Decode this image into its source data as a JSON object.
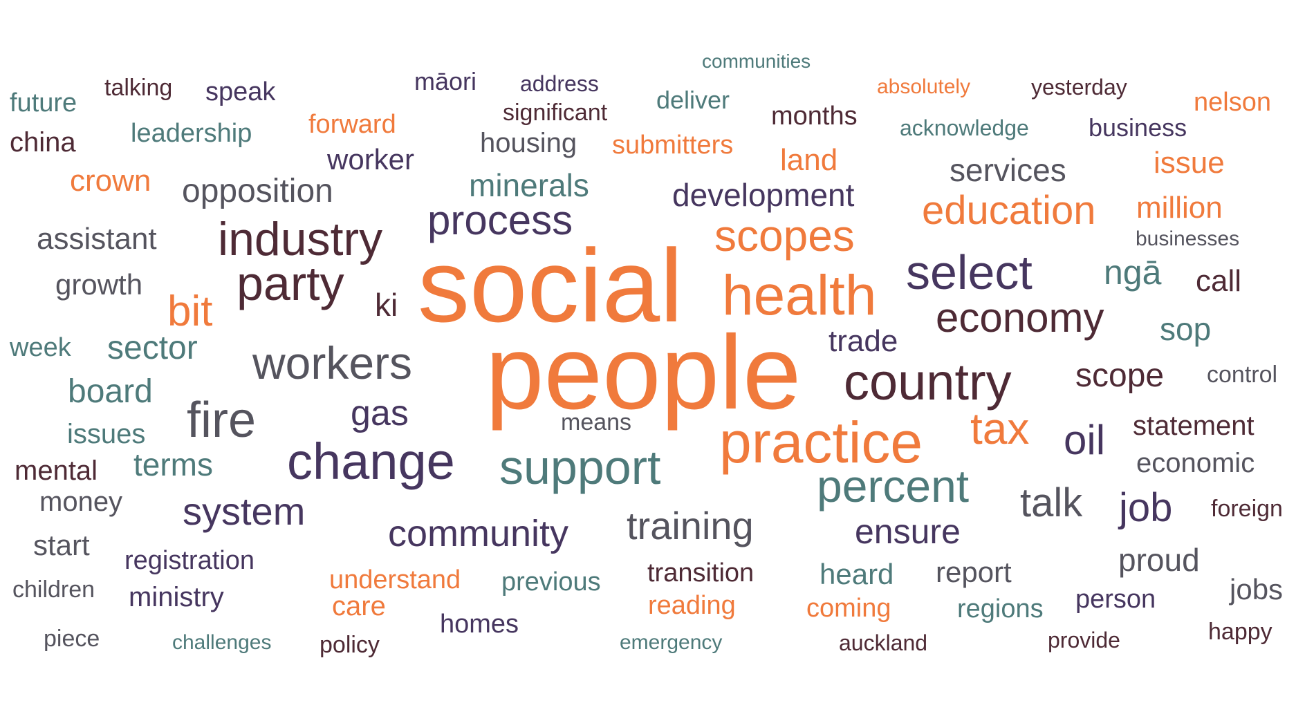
{
  "colors": {
    "orange": "#f07a3c",
    "dark_maroon": "#4e2a35",
    "purple": "#46365f",
    "teal": "#4e7a7a",
    "gray": "#55545e"
  },
  "words": [
    {
      "text": "social",
      "color": "orange"
    },
    {
      "text": "people",
      "color": "orange"
    },
    {
      "text": "health",
      "color": "orange"
    },
    {
      "text": "practice",
      "color": "orange"
    },
    {
      "text": "country",
      "color": "dark_maroon"
    },
    {
      "text": "change",
      "color": "purple"
    },
    {
      "text": "industry",
      "color": "dark_maroon"
    },
    {
      "text": "party",
      "color": "dark_maroon"
    },
    {
      "text": "support",
      "color": "teal"
    },
    {
      "text": "select",
      "color": "purple"
    },
    {
      "text": "workers",
      "color": "gray"
    },
    {
      "text": "scopes",
      "color": "orange"
    },
    {
      "text": "percent",
      "color": "teal"
    },
    {
      "text": "economy",
      "color": "dark_maroon"
    },
    {
      "text": "fire",
      "color": "gray"
    },
    {
      "text": "process",
      "color": "purple"
    },
    {
      "text": "education",
      "color": "orange"
    },
    {
      "text": "tax",
      "color": "orange"
    },
    {
      "text": "oil",
      "color": "purple"
    },
    {
      "text": "system",
      "color": "purple"
    },
    {
      "text": "training",
      "color": "gray"
    },
    {
      "text": "community",
      "color": "purple"
    },
    {
      "text": "talk",
      "color": "gray"
    },
    {
      "text": "job",
      "color": "purple"
    },
    {
      "text": "bit",
      "color": "orange"
    },
    {
      "text": "development",
      "color": "purple"
    },
    {
      "text": "gas",
      "color": "purple"
    },
    {
      "text": "minerals",
      "color": "teal"
    },
    {
      "text": "opposition",
      "color": "gray"
    },
    {
      "text": "sector",
      "color": "teal"
    },
    {
      "text": "board",
      "color": "teal"
    },
    {
      "text": "scope",
      "color": "dark_maroon"
    },
    {
      "text": "ensure",
      "color": "purple"
    },
    {
      "text": "services",
      "color": "gray"
    },
    {
      "text": "crown",
      "color": "orange"
    },
    {
      "text": "land",
      "color": "orange"
    },
    {
      "text": "issue",
      "color": "orange"
    },
    {
      "text": "million",
      "color": "orange"
    },
    {
      "text": "ngā",
      "color": "teal"
    },
    {
      "text": "sop",
      "color": "teal"
    },
    {
      "text": "terms",
      "color": "teal"
    },
    {
      "text": "proud",
      "color": "gray"
    },
    {
      "text": "trade",
      "color": "purple"
    },
    {
      "text": "assistant",
      "color": "gray"
    },
    {
      "text": "call",
      "color": "dark_maroon"
    },
    {
      "text": "ki",
      "color": "dark_maroon"
    },
    {
      "text": "worker",
      "color": "purple"
    },
    {
      "text": "growth",
      "color": "gray"
    },
    {
      "text": "heard",
      "color": "teal"
    },
    {
      "text": "report",
      "color": "gray"
    },
    {
      "text": "statement",
      "color": "dark_maroon"
    },
    {
      "text": "economic",
      "color": "gray"
    },
    {
      "text": "issues",
      "color": "teal"
    },
    {
      "text": "mental",
      "color": "dark_maroon"
    },
    {
      "text": "money",
      "color": "gray"
    },
    {
      "text": "start",
      "color": "gray"
    },
    {
      "text": "registration",
      "color": "purple"
    },
    {
      "text": "transition",
      "color": "dark_maroon"
    },
    {
      "text": "jobs",
      "color": "gray"
    },
    {
      "text": "housing",
      "color": "gray"
    },
    {
      "text": "week",
      "color": "teal"
    },
    {
      "text": "understand",
      "color": "orange"
    },
    {
      "text": "previous",
      "color": "teal"
    },
    {
      "text": "ministry",
      "color": "purple"
    },
    {
      "text": "care",
      "color": "orange"
    },
    {
      "text": "reading",
      "color": "orange"
    },
    {
      "text": "coming",
      "color": "orange"
    },
    {
      "text": "regions",
      "color": "teal"
    },
    {
      "text": "person",
      "color": "purple"
    },
    {
      "text": "homes",
      "color": "purple"
    },
    {
      "text": "submitters",
      "color": "orange"
    },
    {
      "text": "forward",
      "color": "orange"
    },
    {
      "text": "leadership",
      "color": "teal"
    },
    {
      "text": "china",
      "color": "dark_maroon"
    },
    {
      "text": "future",
      "color": "teal"
    },
    {
      "text": "talking",
      "color": "dark_maroon"
    },
    {
      "text": "speak",
      "color": "purple"
    },
    {
      "text": "māori",
      "color": "purple"
    },
    {
      "text": "address",
      "color": "purple"
    },
    {
      "text": "significant",
      "color": "dark_maroon"
    },
    {
      "text": "deliver",
      "color": "teal"
    },
    {
      "text": "months",
      "color": "dark_maroon"
    },
    {
      "text": "communities",
      "color": "teal"
    },
    {
      "text": "absolutely",
      "color": "orange"
    },
    {
      "text": "yesterday",
      "color": "dark_maroon"
    },
    {
      "text": "nelson",
      "color": "orange"
    },
    {
      "text": "acknowledge",
      "color": "teal"
    },
    {
      "text": "business",
      "color": "purple"
    },
    {
      "text": "businesses",
      "color": "gray"
    },
    {
      "text": "control",
      "color": "gray"
    },
    {
      "text": "foreign",
      "color": "dark_maroon"
    },
    {
      "text": "means",
      "color": "gray"
    },
    {
      "text": "children",
      "color": "gray"
    },
    {
      "text": "piece",
      "color": "gray"
    },
    {
      "text": "challenges",
      "color": "teal"
    },
    {
      "text": "policy",
      "color": "dark_maroon"
    },
    {
      "text": "emergency",
      "color": "teal"
    },
    {
      "text": "auckland",
      "color": "dark_maroon"
    },
    {
      "text": "provide",
      "color": "dark_maroon"
    },
    {
      "text": "happy",
      "color": "dark_maroon"
    }
  ]
}
